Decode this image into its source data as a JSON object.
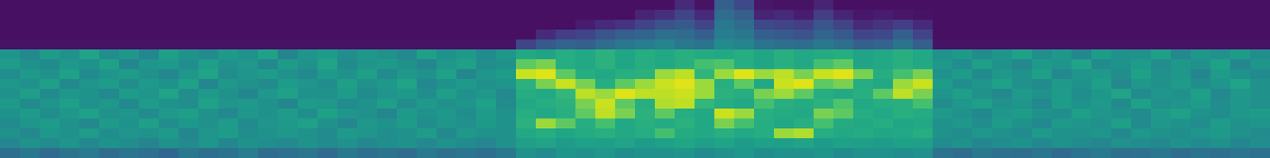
{
  "chart_data": {
    "type": "heatmap",
    "color": "viridis",
    "tick_labels": false,
    "zlim": [
      0,
      1
    ],
    "cells": [
      [
        0.04,
        0.04,
        0.04,
        0.04,
        0.04,
        0.04,
        0.04,
        0.04,
        0.04,
        0.04,
        0.04,
        0.04,
        0.04,
        0.04,
        0.04,
        0.04,
        0.04,
        0.04,
        0.04,
        0.04,
        0.04,
        0.04,
        0.04,
        0.04,
        0.04,
        0.04,
        0.04,
        0.04,
        0.04,
        0.04,
        0.04,
        0.04,
        0.04,
        0.04,
        0.12,
        0.05,
        0.3,
        0.22,
        0.06,
        0.05,
        0.05,
        0.1,
        0.04,
        0.04,
        0.04,
        0.04,
        0.04,
        0.04,
        0.04,
        0.04,
        0.04,
        0.04,
        0.04,
        0.04,
        0.04,
        0.04,
        0.04,
        0.04,
        0.04,
        0.04,
        0.04,
        0.04,
        0.04,
        0.04
      ],
      [
        0.04,
        0.04,
        0.04,
        0.04,
        0.04,
        0.04,
        0.04,
        0.04,
        0.04,
        0.04,
        0.04,
        0.04,
        0.04,
        0.04,
        0.04,
        0.04,
        0.04,
        0.04,
        0.04,
        0.04,
        0.04,
        0.04,
        0.04,
        0.04,
        0.04,
        0.04,
        0.04,
        0.04,
        0.04,
        0.04,
        0.04,
        0.04,
        0.1,
        0.14,
        0.2,
        0.12,
        0.35,
        0.3,
        0.1,
        0.12,
        0.08,
        0.18,
        0.1,
        0.06,
        0.08,
        0.06,
        0.05,
        0.04,
        0.04,
        0.04,
        0.04,
        0.04,
        0.04,
        0.04,
        0.04,
        0.04,
        0.04,
        0.04,
        0.04,
        0.04,
        0.04,
        0.04,
        0.04,
        0.04
      ],
      [
        0.04,
        0.04,
        0.04,
        0.04,
        0.04,
        0.04,
        0.04,
        0.04,
        0.04,
        0.04,
        0.04,
        0.04,
        0.04,
        0.04,
        0.04,
        0.04,
        0.04,
        0.04,
        0.04,
        0.04,
        0.04,
        0.04,
        0.04,
        0.04,
        0.04,
        0.04,
        0.04,
        0.04,
        0.04,
        0.08,
        0.12,
        0.15,
        0.2,
        0.25,
        0.28,
        0.2,
        0.4,
        0.35,
        0.22,
        0.2,
        0.18,
        0.26,
        0.2,
        0.12,
        0.15,
        0.18,
        0.12,
        0.04,
        0.04,
        0.04,
        0.04,
        0.04,
        0.04,
        0.04,
        0.04,
        0.04,
        0.04,
        0.04,
        0.04,
        0.04,
        0.04,
        0.04,
        0.04,
        0.04
      ],
      [
        0.04,
        0.04,
        0.04,
        0.04,
        0.04,
        0.04,
        0.04,
        0.04,
        0.04,
        0.04,
        0.04,
        0.04,
        0.04,
        0.04,
        0.04,
        0.04,
        0.04,
        0.04,
        0.04,
        0.04,
        0.04,
        0.04,
        0.04,
        0.04,
        0.04,
        0.04,
        0.04,
        0.12,
        0.18,
        0.2,
        0.26,
        0.3,
        0.32,
        0.36,
        0.35,
        0.3,
        0.42,
        0.4,
        0.3,
        0.28,
        0.25,
        0.32,
        0.28,
        0.2,
        0.22,
        0.3,
        0.2,
        0.04,
        0.04,
        0.04,
        0.04,
        0.04,
        0.04,
        0.04,
        0.04,
        0.04,
        0.04,
        0.04,
        0.04,
        0.04,
        0.04,
        0.04,
        0.04,
        0.04
      ],
      [
        0.05,
        0.05,
        0.05,
        0.05,
        0.05,
        0.05,
        0.05,
        0.05,
        0.05,
        0.05,
        0.05,
        0.05,
        0.05,
        0.05,
        0.05,
        0.05,
        0.05,
        0.05,
        0.05,
        0.05,
        0.05,
        0.05,
        0.05,
        0.05,
        0.05,
        0.05,
        0.2,
        0.28,
        0.32,
        0.3,
        0.35,
        0.4,
        0.42,
        0.45,
        0.4,
        0.38,
        0.48,
        0.45,
        0.38,
        0.36,
        0.35,
        0.4,
        0.36,
        0.3,
        0.32,
        0.38,
        0.3,
        0.05,
        0.05,
        0.05,
        0.05,
        0.05,
        0.05,
        0.05,
        0.05,
        0.05,
        0.05,
        0.05,
        0.05,
        0.05,
        0.05,
        0.05,
        0.05,
        0.05
      ],
      [
        0.52,
        0.47,
        0.55,
        0.5,
        0.58,
        0.49,
        0.53,
        0.46,
        0.56,
        0.51,
        0.48,
        0.54,
        0.5,
        0.57,
        0.45,
        0.52,
        0.55,
        0.49,
        0.53,
        0.5,
        0.47,
        0.56,
        0.51,
        0.54,
        0.48,
        0.53,
        0.6,
        0.58,
        0.62,
        0.6,
        0.64,
        0.59,
        0.62,
        0.6,
        0.63,
        0.61,
        0.6,
        0.62,
        0.59,
        0.63,
        0.6,
        0.61,
        0.62,
        0.58,
        0.6,
        0.63,
        0.6,
        0.5,
        0.54,
        0.48,
        0.52,
        0.57,
        0.49,
        0.53,
        0.46,
        0.55,
        0.51,
        0.5,
        0.56,
        0.47,
        0.53,
        0.5,
        0.55,
        0.49
      ],
      [
        0.55,
        0.5,
        0.48,
        0.53,
        0.51,
        0.57,
        0.46,
        0.52,
        0.54,
        0.49,
        0.56,
        0.5,
        0.53,
        0.47,
        0.55,
        0.51,
        0.58,
        0.48,
        0.52,
        0.54,
        0.5,
        0.46,
        0.53,
        0.57,
        0.49,
        0.51,
        0.75,
        0.8,
        0.62,
        0.6,
        0.64,
        0.59,
        0.62,
        0.6,
        0.63,
        0.7,
        0.72,
        0.62,
        0.59,
        0.63,
        0.6,
        0.7,
        0.75,
        0.58,
        0.6,
        0.63,
        0.6,
        0.53,
        0.49,
        0.56,
        0.5,
        0.47,
        0.54,
        0.52,
        0.58,
        0.48,
        0.51,
        0.55,
        0.49,
        0.53,
        0.5,
        0.57,
        0.46,
        0.52
      ],
      [
        0.49,
        0.54,
        0.51,
        0.57,
        0.48,
        0.52,
        0.55,
        0.5,
        0.46,
        0.53,
        0.58,
        0.49,
        0.52,
        0.55,
        0.5,
        0.47,
        0.54,
        0.51,
        0.56,
        0.48,
        0.53,
        0.5,
        0.57,
        0.46,
        0.52,
        0.55,
        0.92,
        0.95,
        0.75,
        0.62,
        0.6,
        0.63,
        0.64,
        0.85,
        0.9,
        0.65,
        0.85,
        0.95,
        0.85,
        0.9,
        0.8,
        0.92,
        0.95,
        0.8,
        0.62,
        0.7,
        0.8,
        0.51,
        0.55,
        0.48,
        0.53,
        0.5,
        0.56,
        0.47,
        0.52,
        0.54,
        0.49,
        0.57,
        0.5,
        0.53,
        0.46,
        0.55,
        0.51,
        0.48
      ],
      [
        0.53,
        0.5,
        0.56,
        0.47,
        0.52,
        0.55,
        0.49,
        0.54,
        0.51,
        0.57,
        0.46,
        0.53,
        0.5,
        0.48,
        0.55,
        0.52,
        0.49,
        0.56,
        0.5,
        0.53,
        0.58,
        0.47,
        0.51,
        0.54,
        0.5,
        0.52,
        0.64,
        0.8,
        0.92,
        0.8,
        0.62,
        0.75,
        0.85,
        0.92,
        0.95,
        0.85,
        0.63,
        0.75,
        0.6,
        0.92,
        0.95,
        0.75,
        0.8,
        0.62,
        0.6,
        0.85,
        0.92,
        0.55,
        0.49,
        0.52,
        0.57,
        0.5,
        0.48,
        0.54,
        0.51,
        0.56,
        0.47,
        0.53,
        0.5,
        0.55,
        0.49,
        0.52,
        0.58,
        0.5
      ],
      [
        0.5,
        0.56,
        0.48,
        0.53,
        0.51,
        0.47,
        0.55,
        0.52,
        0.58,
        0.49,
        0.54,
        0.5,
        0.46,
        0.53,
        0.57,
        0.51,
        0.5,
        0.55,
        0.48,
        0.52,
        0.54,
        0.49,
        0.56,
        0.51,
        0.53,
        0.47,
        0.62,
        0.6,
        0.66,
        0.9,
        0.85,
        0.95,
        0.9,
        0.9,
        0.92,
        0.85,
        0.64,
        0.62,
        0.8,
        0.85,
        0.75,
        0.62,
        0.6,
        0.63,
        0.75,
        0.9,
        0.8,
        0.52,
        0.56,
        0.5,
        0.47,
        0.54,
        0.51,
        0.55,
        0.49,
        0.53,
        0.58,
        0.48,
        0.52,
        0.5,
        0.56,
        0.47,
        0.53,
        0.51
      ],
      [
        0.54,
        0.48,
        0.52,
        0.56,
        0.5,
        0.53,
        0.47,
        0.55,
        0.51,
        0.49,
        0.57,
        0.52,
        0.54,
        0.5,
        0.46,
        0.55,
        0.53,
        0.48,
        0.51,
        0.56,
        0.49,
        0.54,
        0.5,
        0.52,
        0.57,
        0.48,
        0.6,
        0.62,
        0.64,
        0.8,
        0.92,
        0.75,
        0.63,
        0.88,
        0.9,
        0.66,
        0.62,
        0.6,
        0.7,
        0.63,
        0.61,
        0.64,
        0.72,
        0.6,
        0.62,
        0.63,
        0.7,
        0.49,
        0.53,
        0.56,
        0.5,
        0.52,
        0.47,
        0.55,
        0.51,
        0.54,
        0.48,
        0.57,
        0.5,
        0.52,
        0.55,
        0.49,
        0.53,
        0.5
      ],
      [
        0.51,
        0.55,
        0.49,
        0.53,
        0.57,
        0.5,
        0.52,
        0.48,
        0.54,
        0.56,
        0.5,
        0.47,
        0.53,
        0.51,
        0.55,
        0.49,
        0.57,
        0.52,
        0.5,
        0.46,
        0.54,
        0.51,
        0.53,
        0.49,
        0.55,
        0.5,
        0.62,
        0.6,
        0.63,
        0.75,
        0.9,
        0.8,
        0.64,
        0.75,
        0.62,
        0.6,
        0.92,
        0.85,
        0.63,
        0.61,
        0.6,
        0.8,
        0.75,
        0.62,
        0.6,
        0.63,
        0.61,
        0.54,
        0.5,
        0.47,
        0.53,
        0.55,
        0.51,
        0.49,
        0.56,
        0.52,
        0.5,
        0.48,
        0.54,
        0.57,
        0.51,
        0.49,
        0.53,
        0.55
      ],
      [
        0.48,
        0.52,
        0.55,
        0.5,
        0.47,
        0.54,
        0.51,
        0.56,
        0.49,
        0.53,
        0.5,
        0.55,
        0.48,
        0.52,
        0.54,
        0.57,
        0.5,
        0.46,
        0.53,
        0.51,
        0.55,
        0.49,
        0.52,
        0.5,
        0.54,
        0.51,
        0.64,
        0.85,
        0.75,
        0.62,
        0.7,
        0.6,
        0.63,
        0.61,
        0.64,
        0.6,
        0.8,
        0.7,
        0.62,
        0.6,
        0.63,
        0.7,
        0.61,
        0.6,
        0.62,
        0.59,
        0.6,
        0.5,
        0.53,
        0.49,
        0.55,
        0.51,
        0.47,
        0.54,
        0.52,
        0.5,
        0.56,
        0.48,
        0.53,
        0.51,
        0.49,
        0.55,
        0.5,
        0.52
      ],
      [
        0.5,
        0.47,
        0.53,
        0.51,
        0.55,
        0.49,
        0.52,
        0.5,
        0.54,
        0.46,
        0.52,
        0.55,
        0.49,
        0.51,
        0.53,
        0.5,
        0.48,
        0.54,
        0.52,
        0.49,
        0.5,
        0.55,
        0.47,
        0.53,
        0.51,
        0.5,
        0.6,
        0.62,
        0.59,
        0.61,
        0.63,
        0.6,
        0.62,
        0.7,
        0.61,
        0.6,
        0.63,
        0.6,
        0.62,
        0.85,
        0.88,
        0.62,
        0.6,
        0.61,
        0.59,
        0.6,
        0.62,
        0.51,
        0.49,
        0.53,
        0.5,
        0.48,
        0.54,
        0.51,
        0.5,
        0.52,
        0.47,
        0.53,
        0.5,
        0.49,
        0.52,
        0.54,
        0.5,
        0.48
      ],
      [
        0.46,
        0.5,
        0.48,
        0.52,
        0.47,
        0.51,
        0.49,
        0.45,
        0.5,
        0.48,
        0.52,
        0.46,
        0.5,
        0.49,
        0.47,
        0.51,
        0.48,
        0.5,
        0.46,
        0.49,
        0.51,
        0.47,
        0.5,
        0.48,
        0.46,
        0.5,
        0.56,
        0.58,
        0.55,
        0.57,
        0.56,
        0.58,
        0.55,
        0.57,
        0.59,
        0.56,
        0.58,
        0.55,
        0.57,
        0.56,
        0.58,
        0.55,
        0.57,
        0.56,
        0.55,
        0.57,
        0.56,
        0.48,
        0.5,
        0.46,
        0.49,
        0.51,
        0.47,
        0.5,
        0.48,
        0.46,
        0.5,
        0.49,
        0.47,
        0.51,
        0.48,
        0.5,
        0.46,
        0.49
      ],
      [
        0.36,
        0.4,
        0.34,
        0.38,
        0.41,
        0.35,
        0.39,
        0.37,
        0.33,
        0.4,
        0.36,
        0.38,
        0.42,
        0.35,
        0.37,
        0.39,
        0.34,
        0.4,
        0.36,
        0.38,
        0.35,
        0.41,
        0.37,
        0.39,
        0.36,
        0.4,
        0.5,
        0.48,
        0.52,
        0.5,
        0.53,
        0.49,
        0.51,
        0.5,
        0.52,
        0.48,
        0.5,
        0.53,
        0.49,
        0.51,
        0.5,
        0.52,
        0.48,
        0.5,
        0.51,
        0.49,
        0.5,
        0.38,
        0.35,
        0.4,
        0.37,
        0.36,
        0.39,
        0.34,
        0.38,
        0.41,
        0.36,
        0.37,
        0.4,
        0.35,
        0.38,
        0.36,
        0.39,
        0.37
      ]
    ]
  }
}
